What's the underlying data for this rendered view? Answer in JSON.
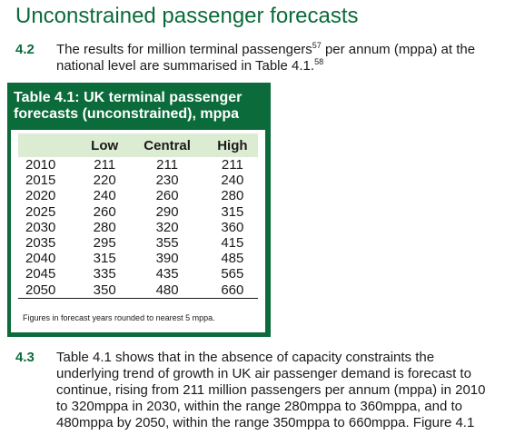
{
  "section_title": "Unconstrained passenger forecasts",
  "paragraph_42": {
    "number": "4.2",
    "text_before": "The results for million terminal passengers",
    "footnote_a": "57",
    "text_middle": " per annum (mppa) at the national level are summarised in Table 4.1.",
    "footnote_b": "58"
  },
  "table": {
    "title": "Table 4.1: UK terminal passenger forecasts (unconstrained), mppa",
    "headers": [
      "",
      "Low",
      "Central",
      "High"
    ],
    "rows": [
      [
        "2010",
        "211",
        "211",
        "211"
      ],
      [
        "2015",
        "220",
        "230",
        "240"
      ],
      [
        "2020",
        "240",
        "260",
        "280"
      ],
      [
        "2025",
        "260",
        "290",
        "315"
      ],
      [
        "2030",
        "280",
        "320",
        "360"
      ],
      [
        "2035",
        "295",
        "355",
        "415"
      ],
      [
        "2040",
        "315",
        "390",
        "485"
      ],
      [
        "2045",
        "335",
        "435",
        "565"
      ],
      [
        "2050",
        "350",
        "480",
        "660"
      ]
    ],
    "note": "Figures in forecast years rounded to nearest 5 mppa."
  },
  "paragraph_43": {
    "number": "4.3",
    "text": "Table 4.1 shows that in the absence of capacity constraints the underlying trend of growth in UK air passenger demand is forecast to continue, rising from 211 million passengers per annum (mppa) in 2010 to 320mppa in 2030, within the range 280mppa to 360mppa, and to 480mppa by 2050, within the range 350mppa to 660mppa. Figure 4.1"
  },
  "colors": {
    "accent": "#0b6b3a",
    "header_fill": "#dcecd2"
  }
}
